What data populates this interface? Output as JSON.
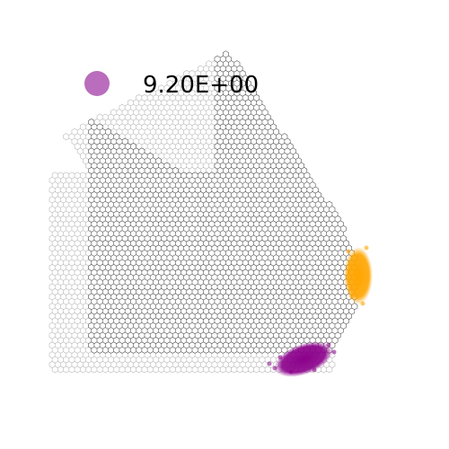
{
  "chart_data": {
    "type": "scatter",
    "subtype": "hexbin-spatial",
    "title": "",
    "xlabel": "",
    "ylabel": "",
    "axes_visible": false,
    "grid": false,
    "legend": {
      "placement": "top-left",
      "entries": [
        {
          "label": "9.20E+00",
          "color": "#9b2fa0"
        }
      ]
    },
    "colors": {
      "hex_edge": "#555555",
      "cluster_a": "#ffa500",
      "cluster_b": "#8b008b",
      "legend_marker": "#9b2fa0"
    },
    "series": [
      {
        "values_note_free": true,
        "color": "#ffa500",
        "points": [
          {
            "x": 0.92,
            "y": 0.42
          },
          {
            "x": 0.94,
            "y": 0.45
          },
          {
            "x": 0.95,
            "y": 0.4
          },
          {
            "x": 0.93,
            "y": 0.38
          },
          {
            "x": 0.96,
            "y": 0.43
          },
          {
            "x": 0.94,
            "y": 0.36
          },
          {
            "x": 0.92,
            "y": 0.47
          },
          {
            "x": 0.95,
            "y": 0.48
          }
        ]
      },
      {
        "color": "#8b008b",
        "points": [
          {
            "x": 0.68,
            "y": 0.1
          },
          {
            "x": 0.71,
            "y": 0.11
          },
          {
            "x": 0.74,
            "y": 0.13
          },
          {
            "x": 0.77,
            "y": 0.15
          },
          {
            "x": 0.72,
            "y": 0.08
          },
          {
            "x": 0.76,
            "y": 0.12
          },
          {
            "x": 0.79,
            "y": 0.17
          },
          {
            "x": 0.7,
            "y": 0.13
          },
          {
            "x": 0.74,
            "y": 0.1
          }
        ]
      }
    ]
  }
}
